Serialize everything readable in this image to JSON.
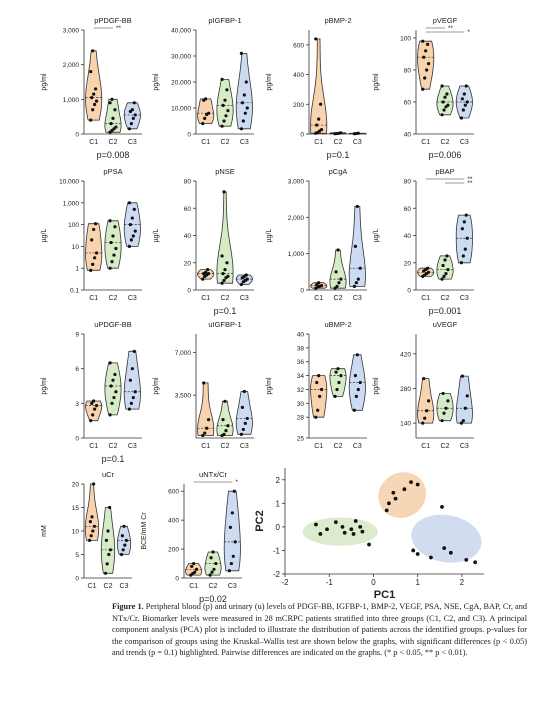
{
  "chart_data": [
    {
      "type": "violin",
      "title": "pPDGF-BB",
      "ylabel": "pg/ml",
      "categories": [
        "C1",
        "C2",
        "C3"
      ],
      "yticks": [
        "0",
        "1,000",
        "2,000",
        "3,000"
      ],
      "ylim": [
        0,
        3000
      ],
      "scale": "linear",
      "pvalue": "p=0.008",
      "sig": [
        {
          "from": 0,
          "to": 1,
          "label": "**"
        }
      ],
      "series": [
        {
          "name": "C1",
          "values": [
            400,
            700,
            850,
            950,
            1050,
            1150,
            1300,
            1800,
            2400
          ]
        },
        {
          "name": "C2",
          "values": [
            50,
            100,
            150,
            200,
            300,
            450,
            700,
            900,
            1000
          ]
        },
        {
          "name": "C3",
          "values": [
            150,
            300,
            450,
            550,
            650,
            700,
            900
          ]
        }
      ]
    },
    {
      "type": "violin",
      "title": "pIGFBP-1",
      "ylabel": "pg/ml",
      "categories": [
        "C1",
        "C2",
        "C3"
      ],
      "yticks": [
        "0",
        "10,000",
        "20,000",
        "30,000",
        "40,000"
      ],
      "ylim": [
        0,
        40000
      ],
      "scale": "linear",
      "pvalue": "",
      "sig": [],
      "series": [
        {
          "name": "C1",
          "values": [
            4000,
            6000,
            7500,
            8000,
            13000,
            13500
          ]
        },
        {
          "name": "C2",
          "values": [
            3000,
            5000,
            7000,
            9000,
            11000,
            13000,
            17000,
            21000
          ]
        },
        {
          "name": "C3",
          "values": [
            2000,
            5000,
            8000,
            10000,
            12000,
            15000,
            20000,
            31000
          ]
        }
      ]
    },
    {
      "type": "violin",
      "title": "pBMP-2",
      "ylabel": "pg/ml",
      "categories": [
        "C1",
        "C2",
        "C3"
      ],
      "yticks": [
        "0",
        "200",
        "400",
        "600"
      ],
      "ylim": [
        0,
        700
      ],
      "scale": "linear",
      "pvalue": "p=0.1",
      "sig": [],
      "series": [
        {
          "name": "C1",
          "values": [
            5,
            10,
            20,
            30,
            60,
            100,
            200,
            640
          ]
        },
        {
          "name": "C2",
          "values": [
            2,
            3,
            5,
            8
          ]
        },
        {
          "name": "C3",
          "values": [
            2,
            3,
            5
          ]
        }
      ]
    },
    {
      "type": "violin",
      "title": "pVEGF",
      "ylabel": "pg/ml",
      "categories": [
        "C1",
        "C2",
        "C3"
      ],
      "yticks": [
        "40",
        "60",
        "80",
        "100"
      ],
      "ylim": [
        40,
        105
      ],
      "scale": "linear",
      "pvalue": "p=0.006",
      "sig": [
        {
          "from": 0,
          "to": 1,
          "label": "**"
        },
        {
          "from": 0,
          "to": 2,
          "label": "*"
        }
      ],
      "series": [
        {
          "name": "C1",
          "values": [
            68,
            75,
            80,
            84,
            88,
            92,
            96,
            98
          ]
        },
        {
          "name": "C2",
          "values": [
            52,
            55,
            57,
            58,
            60,
            63,
            65,
            70
          ]
        },
        {
          "name": "C3",
          "values": [
            50,
            55,
            58,
            60,
            62,
            65,
            70
          ]
        }
      ]
    },
    {
      "type": "violin",
      "title": "pPSA",
      "ylabel": "µg/L",
      "categories": [
        "C1",
        "C2",
        "C3"
      ],
      "yticks": [
        "0.1",
        "1",
        "10",
        "100",
        "1,000",
        "10,000"
      ],
      "ylim": [
        0.1,
        10000
      ],
      "scale": "log",
      "pvalue": "",
      "sig": [],
      "series": [
        {
          "name": "C1",
          "values": [
            0.8,
            1.5,
            3,
            5,
            20,
            60,
            110
          ]
        },
        {
          "name": "C2",
          "values": [
            1,
            2,
            4,
            8,
            15,
            30,
            80,
            150
          ]
        },
        {
          "name": "C3",
          "values": [
            10,
            20,
            30,
            50,
            100,
            200,
            500,
            1000
          ]
        }
      ]
    },
    {
      "type": "violin",
      "title": "pNSE",
      "ylabel": "µg/L",
      "categories": [
        "C1",
        "C2",
        "C3"
      ],
      "yticks": [
        "0",
        "20",
        "40",
        "60",
        "80"
      ],
      "ylim": [
        0,
        80
      ],
      "scale": "linear",
      "pvalue": "p=0.1",
      "sig": [],
      "series": [
        {
          "name": "C1",
          "values": [
            8,
            10,
            11,
            12,
            12,
            13,
            15
          ]
        },
        {
          "name": "C2",
          "values": [
            5,
            7,
            9,
            10,
            12,
            15,
            20,
            25,
            72
          ]
        },
        {
          "name": "C3",
          "values": [
            4,
            6,
            7,
            8,
            9,
            10,
            11
          ]
        }
      ]
    },
    {
      "type": "violin",
      "title": "pCgA",
      "ylabel": "µg/L",
      "categories": [
        "C1",
        "C2",
        "C3"
      ],
      "yticks": [
        "0",
        "1,000",
        "2,000",
        "3,000"
      ],
      "ylim": [
        0,
        3000
      ],
      "scale": "linear",
      "pvalue": "",
      "sig": [],
      "series": [
        {
          "name": "C1",
          "values": [
            50,
            80,
            100,
            120,
            150,
            200
          ]
        },
        {
          "name": "C2",
          "values": [
            50,
            100,
            200,
            300,
            500,
            1100
          ]
        },
        {
          "name": "C3",
          "values": [
            100,
            200,
            300,
            600,
            1200,
            2300
          ]
        }
      ]
    },
    {
      "type": "violin",
      "title": "pBAP",
      "ylabel": "µg/L",
      "categories": [
        "C1",
        "C2",
        "C3"
      ],
      "yticks": [
        "0",
        "20",
        "40",
        "60",
        "80"
      ],
      "ylim": [
        0,
        80
      ],
      "scale": "linear",
      "pvalue": "p=0.001",
      "sig": [
        {
          "from": 0,
          "to": 2,
          "label": "**"
        },
        {
          "from": 1,
          "to": 2,
          "label": "**"
        }
      ],
      "series": [
        {
          "name": "C1",
          "values": [
            10,
            11,
            12,
            13,
            14,
            15,
            16
          ]
        },
        {
          "name": "C2",
          "values": [
            8,
            10,
            12,
            15,
            18,
            22,
            25
          ]
        },
        {
          "name": "C3",
          "values": [
            20,
            25,
            30,
            38,
            45,
            50,
            55
          ]
        }
      ]
    },
    {
      "type": "violin",
      "title": "uPDGF-BB",
      "ylabel": "pg/ml",
      "categories": [
        "C1",
        "C2",
        "C3"
      ],
      "yticks": [
        "0",
        "3",
        "6",
        "9"
      ],
      "ylim": [
        0,
        9
      ],
      "scale": "linear",
      "pvalue": "p=0.1",
      "sig": [],
      "series": [
        {
          "name": "C1",
          "values": [
            1.5,
            2,
            2.5,
            2.8,
            3,
            3.2
          ]
        },
        {
          "name": "C2",
          "values": [
            2,
            3,
            3.5,
            4,
            4.5,
            5,
            5.5,
            6.5
          ]
        },
        {
          "name": "C3",
          "values": [
            2.5,
            3,
            3.5,
            4,
            5,
            6,
            7.5
          ]
        }
      ]
    },
    {
      "type": "violin",
      "title": "uIGFBP-1",
      "ylabel": "pg/ml",
      "categories": [
        "C1",
        "C2",
        "C3"
      ],
      "yticks": [
        "3,500",
        "7,000"
      ],
      "ylim": [
        0,
        8500
      ],
      "scale": "linear",
      "pvalue": "",
      "sig": [],
      "series": [
        {
          "name": "C1",
          "values": [
            200,
            400,
            800,
            1500,
            4500
          ]
        },
        {
          "name": "C2",
          "values": [
            200,
            300,
            600,
            1000,
            1500,
            3000
          ]
        },
        {
          "name": "C3",
          "values": [
            300,
            700,
            1200,
            1600,
            2500,
            3800
          ]
        }
      ]
    },
    {
      "type": "violin",
      "title": "uBMP-2",
      "ylabel": "pg/ml",
      "categories": [
        "C1",
        "C2",
        "C3"
      ],
      "yticks": [
        "25",
        "28",
        "30",
        "32",
        "34",
        "36",
        "38",
        "40"
      ],
      "ylim": [
        25,
        40
      ],
      "scale": "linear",
      "pvalue": "",
      "sig": [],
      "series": [
        {
          "name": "C1",
          "values": [
            28,
            29,
            31,
            32,
            33,
            34
          ]
        },
        {
          "name": "C2",
          "values": [
            31,
            32,
            33,
            34,
            34.5,
            35
          ]
        },
        {
          "name": "C3",
          "values": [
            29,
            31,
            32,
            33,
            34,
            37
          ]
        }
      ]
    },
    {
      "type": "violin",
      "title": "uVEGF",
      "ylabel": "pg/ml",
      "categories": [
        "C1",
        "C2",
        "C3"
      ],
      "yticks": [
        "140",
        "280",
        "420"
      ],
      "ylim": [
        80,
        500
      ],
      "scale": "linear",
      "pvalue": "",
      "sig": [],
      "series": [
        {
          "name": "C1",
          "values": [
            140,
            160,
            190,
            230,
            320
          ]
        },
        {
          "name": "C2",
          "values": [
            150,
            180,
            200,
            230,
            260
          ]
        },
        {
          "name": "C3",
          "values": [
            140,
            150,
            200,
            250,
            330
          ]
        }
      ]
    },
    {
      "type": "violin",
      "title": "uCr",
      "ylabel": "mM",
      "categories": [
        "C1",
        "C2",
        "C3"
      ],
      "yticks": [
        "0",
        "5",
        "10",
        "15",
        "20"
      ],
      "ylim": [
        0,
        20
      ],
      "scale": "linear",
      "pvalue": "",
      "sig": [],
      "series": [
        {
          "name": "C1",
          "values": [
            8,
            9,
            10,
            11,
            12,
            13,
            20
          ]
        },
        {
          "name": "C2",
          "values": [
            1,
            3,
            5,
            6,
            8,
            10,
            15
          ]
        },
        {
          "name": "C3",
          "values": [
            5,
            6,
            7,
            8,
            9,
            11
          ]
        }
      ]
    },
    {
      "type": "violin",
      "title": "uNTx/Cr",
      "ylabel": "BCE/mM Cr",
      "categories": [
        "C1",
        "C2",
        "C3"
      ],
      "yticks": [
        "0",
        "200",
        "400",
        "600"
      ],
      "ylim": [
        0,
        650
      ],
      "scale": "linear",
      "pvalue": "p=0.02",
      "sig": [
        {
          "from": 0,
          "to": 2,
          "label": "*"
        }
      ],
      "series": [
        {
          "name": "C1",
          "values": [
            20,
            30,
            40,
            60,
            80,
            100
          ]
        },
        {
          "name": "C2",
          "values": [
            20,
            40,
            60,
            100,
            140,
            180
          ]
        },
        {
          "name": "C3",
          "values": [
            50,
            100,
            150,
            250,
            350,
            450,
            600
          ]
        }
      ]
    },
    {
      "type": "scatter",
      "xlabel": "PC1",
      "ylabel": "PC2",
      "xlim": [
        -2,
        2.5
      ],
      "ylim": [
        -2,
        2.5
      ],
      "xticks": [
        "-2",
        "-1",
        "0",
        "1",
        "2"
      ],
      "yticks": [
        "-2",
        "-1",
        "0",
        "1",
        "2"
      ],
      "ellipses": [
        {
          "color": "#d7e8c4",
          "cx": -0.75,
          "cy": -0.2,
          "rx": 0.85,
          "ry": 0.6,
          "angle": 0
        },
        {
          "color": "#f5cfa8",
          "cx": 0.65,
          "cy": 1.35,
          "rx": 0.55,
          "ry": 0.95,
          "angle": -30
        },
        {
          "color": "#c9d6ee",
          "cx": 1.65,
          "cy": -0.5,
          "rx": 0.8,
          "ry": 1.0,
          "angle": 10
        }
      ],
      "points": [
        [
          -1.3,
          0.1
        ],
        [
          -1.05,
          -0.1
        ],
        [
          -0.85,
          0.2
        ],
        [
          -0.7,
          0.0
        ],
        [
          -0.65,
          -0.25
        ],
        [
          -0.5,
          -0.1
        ],
        [
          -0.45,
          -0.3
        ],
        [
          -0.3,
          0.0
        ],
        [
          -0.25,
          -0.2
        ],
        [
          -0.4,
          0.25
        ],
        [
          -1.2,
          -0.3
        ],
        [
          0.3,
          0.7
        ],
        [
          0.35,
          1.0
        ],
        [
          0.45,
          1.45
        ],
        [
          0.7,
          1.6
        ],
        [
          0.85,
          1.9
        ],
        [
          1.0,
          1.8
        ],
        [
          0.5,
          1.2
        ],
        [
          -0.1,
          -0.75
        ],
        [
          0.9,
          -1.0
        ],
        [
          1.0,
          -1.15
        ],
        [
          1.3,
          -1.3
        ],
        [
          1.6,
          -0.9
        ],
        [
          1.75,
          -1.1
        ],
        [
          2.1,
          -1.4
        ],
        [
          1.55,
          0.85
        ],
        [
          2.3,
          -1.5
        ]
      ]
    }
  ],
  "caption": {
    "label": "Figure 1.",
    "text": "Peripheral blood (p) and urinary (u) levels of PDGF-BB, IGFBP-1, BMP-2, VEGF, PSA, NSE, CgA, BAP, Cr, and NTx/Cr. Biomarker levels were measured in 28 mCRPC patients stratified into three groups (C1, C2, and C3). A principal component analysis (PCA) plot is included to illustrate the distribution of patients across the identified groups. p-values for the comparison of groups using the Kruskal–Wallis test are shown below the graphs, with significant differences (p < 0.05) and trends (p = 0.1) highlighted. Pairwise differences are indicated on the graphs. (* p < 0.05, ** p < 0.01)."
  },
  "colors": {
    "C1": "#f8d3ae",
    "C2": "#d6ecc6",
    "C3": "#cddbf2",
    "stroke": "#333333"
  }
}
